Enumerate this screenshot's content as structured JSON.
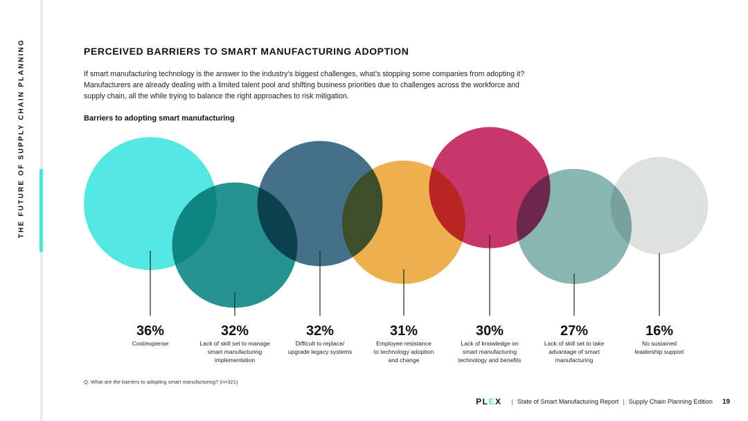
{
  "sidebar": {
    "label": "THE FUTURE OF SUPPLY CHAIN PLANNING"
  },
  "title": "PERCEIVED BARRIERS TO SMART MANUFACTURING ADOPTION",
  "intro": "If smart manufacturing technology is the answer to the industry’s biggest challenges, what’s stopping some companies from adopting it? Manufacturers are already dealing with a limited talent pool and shifting business priorities due to challenges across the workforce and supply chain, all the while trying to balance the right approaches to risk mitigation.",
  "chart_data": {
    "type": "bubble",
    "title": "Barriers to adopting smart manufacturing",
    "unit": "%",
    "series": [
      {
        "value": 36,
        "lines": [
          "Cost/expense"
        ],
        "color": "#46e6df"
      },
      {
        "value": 32,
        "lines": [
          "Lack of skill set to manage",
          "smart manufacturing",
          "implementation"
        ],
        "color": "#128a86"
      },
      {
        "value": 32,
        "lines": [
          "Difficult to replace/",
          "upgrade legacy systems"
        ],
        "color": "#33657f"
      },
      {
        "value": 31,
        "lines": [
          "Employee resistance",
          "to technology adoption",
          "and change"
        ],
        "color": "#eaa93f"
      },
      {
        "value": 30,
        "lines": [
          "Lack of knowledge on",
          "smart manufacturing",
          "technology and benefits"
        ],
        "color": "#c22660"
      },
      {
        "value": 27,
        "lines": [
          "Lack of skill set to take",
          "advantage of smart",
          "manufacturing"
        ],
        "color": "#7fb0ad"
      },
      {
        "value": 16,
        "lines": [
          "No sustained",
          "leadership support"
        ],
        "color": "#dcdedd"
      }
    ]
  },
  "footnote": "Q: What are the barriers to adopting smart manufacturing? (n=321)",
  "footer": {
    "logo_left": "PL",
    "logo_mid": "E",
    "logo_right": "X",
    "report": "State of Smart Manufacturing Report",
    "edition": "Supply Chain Planning Edition",
    "page": "19",
    "separator": "|"
  }
}
